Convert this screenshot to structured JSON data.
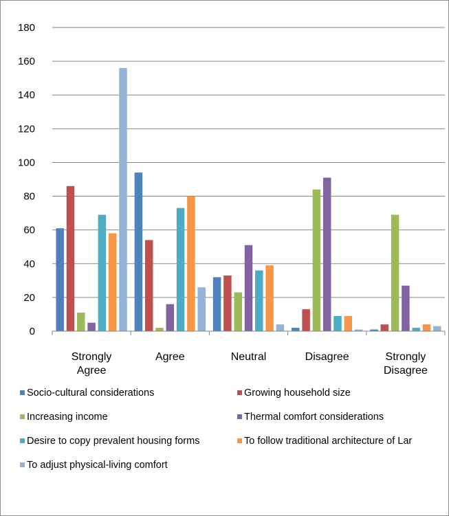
{
  "chart_data": {
    "type": "bar",
    "title": "",
    "xlabel": "",
    "ylabel": "",
    "ylim": [
      0,
      180
    ],
    "yticks": [
      0,
      20,
      40,
      60,
      80,
      100,
      120,
      140,
      160,
      180
    ],
    "grid": true,
    "legend_position": "bottom",
    "categories": [
      [
        "Strongly",
        "Agree"
      ],
      [
        "Agree"
      ],
      [
        "Neutral"
      ],
      [
        "Disagree"
      ],
      [
        "Strongly",
        "Disagree"
      ]
    ],
    "series": [
      {
        "name": "Socio-cultural considerations",
        "color": "#4f81bd",
        "values": [
          61,
          94,
          32,
          2,
          1
        ]
      },
      {
        "name": "Growing household size",
        "color": "#c0504d",
        "values": [
          86,
          54,
          33,
          13,
          4
        ]
      },
      {
        "name": "Increasing income",
        "color": "#9bbb59",
        "values": [
          11,
          2,
          23,
          84,
          69
        ]
      },
      {
        "name": "Thermal comfort considerations",
        "color": "#8064a2",
        "values": [
          5,
          16,
          51,
          91,
          27
        ]
      },
      {
        "name": "Desire to copy prevalent housing forms",
        "color": "#4bacc6",
        "values": [
          69,
          73,
          36,
          9,
          2
        ]
      },
      {
        "name": "To follow traditional architecture of Lar",
        "color": "#f79646",
        "values": [
          58,
          80,
          39,
          9,
          4
        ]
      },
      {
        "name": "To adjust physical-living comfort",
        "color": "#95b3d7",
        "values": [
          156,
          26,
          4,
          1,
          3
        ]
      }
    ]
  }
}
